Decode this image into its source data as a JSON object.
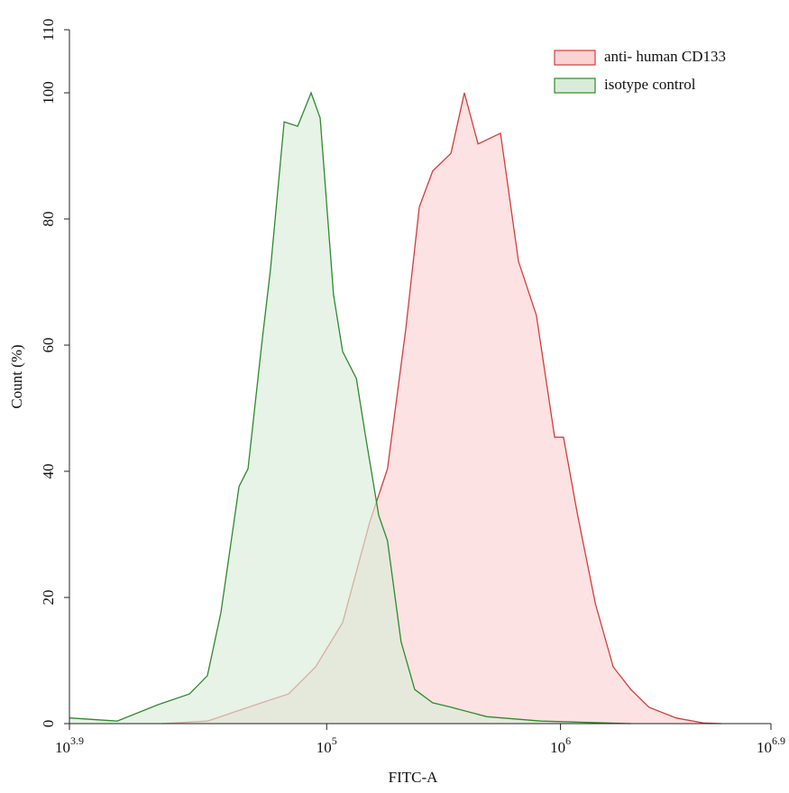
{
  "chart_data": {
    "type": "area",
    "xlabel": "FITC-A",
    "ylabel": "Count  (%)",
    "xscale": "log",
    "xlim": [
      7943,
      7943282
    ],
    "xticks": [
      {
        "value": 7943,
        "label": "10",
        "exponent": "3.9"
      },
      {
        "value": 100000,
        "label": "10",
        "exponent": "5"
      },
      {
        "value": 1000000,
        "label": "10",
        "exponent": "6"
      },
      {
        "value": 7943282,
        "label": "10",
        "exponent": "6.9"
      }
    ],
    "ylim": [
      0,
      110
    ],
    "yticks": [
      0,
      20,
      40,
      60,
      80,
      100,
      110
    ],
    "legend": "upper right",
    "series": [
      {
        "name": "anti- human CD133",
        "color": "#d43c3c",
        "fill": "#fbd3d3",
        "x": [
          19800,
          30900,
          52700,
          68700,
          89700,
          117000,
          153000,
          182000,
          218000,
          249000,
          284000,
          340000,
          388000,
          444000,
          554000,
          661000,
          789000,
          944000,
          1030000,
          1180000,
          1410000,
          1680000,
          2000000,
          2390000,
          3120000,
          4080000,
          4880000
        ],
        "values": [
          0,
          0.4,
          3.3,
          4.7,
          9,
          16,
          32,
          40.4,
          62.6,
          81.9,
          87.6,
          90.4,
          100,
          91.9,
          93.6,
          73.3,
          64.7,
          45.4,
          45.4,
          33.3,
          19,
          9,
          5.4,
          2.6,
          0.9,
          0.1,
          0
        ]
      },
      {
        "name": "isotype control",
        "color": "#2e8a2e",
        "fill": "#d9ecd9",
        "x": [
          7943,
          12700,
          19000,
          25900,
          30900,
          35300,
          42200,
          46100,
          52700,
          57500,
          65800,
          75200,
          85800,
          93800,
          107000,
          117000,
          134000,
          146000,
          167000,
          182000,
          208000,
          238000,
          284000,
          340000,
          484000,
          826000,
          2000000
        ],
        "values": [
          0.9,
          0.4,
          3,
          4.7,
          7.6,
          17.6,
          37.6,
          40.4,
          60,
          72,
          95.4,
          94.7,
          100,
          96,
          68,
          59,
          54.7,
          46,
          33,
          29,
          13,
          5.4,
          3.3,
          2.6,
          1.1,
          0.4,
          0
        ]
      }
    ]
  }
}
